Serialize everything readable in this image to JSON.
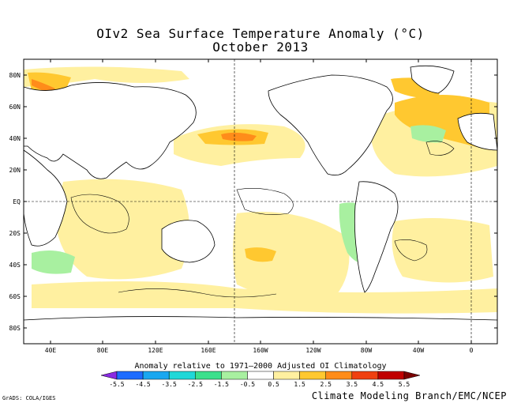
{
  "title_line1": "OIv2 Sea Surface Temperature Anomaly (°C)",
  "title_line2": "October 2013",
  "lat_labels": [
    "80N",
    "60N",
    "40N",
    "20N",
    "EQ",
    "20S",
    "40S",
    "60S",
    "80S"
  ],
  "lon_labels": [
    "40E",
    "80E",
    "120E",
    "160E",
    "160W",
    "120W",
    "80W",
    "40W",
    "0"
  ],
  "colorbar": {
    "title": "Anomaly relative to 1971–2000 Adjusted OI Climatology",
    "tick_labels": [
      "-5.5",
      "-4.5",
      "-3.5",
      "-2.5",
      "-1.5",
      "-0.5",
      "0.5",
      "1.5",
      "2.5",
      "3.5",
      "4.5",
      "5.5"
    ],
    "colors": [
      "#8a2be2",
      "#1e6cff",
      "#1aa7f0",
      "#20d8d8",
      "#3ce08c",
      "#a8f0a0",
      "#ffffff",
      "#fff0a0",
      "#ffc830",
      "#ff8c1a",
      "#f04010",
      "#c00000",
      "#7a0000"
    ]
  },
  "credit_left": "GrADS: COLA/IGES",
  "credit_right": "Climate Modeling Branch/EMC/NCEP"
}
